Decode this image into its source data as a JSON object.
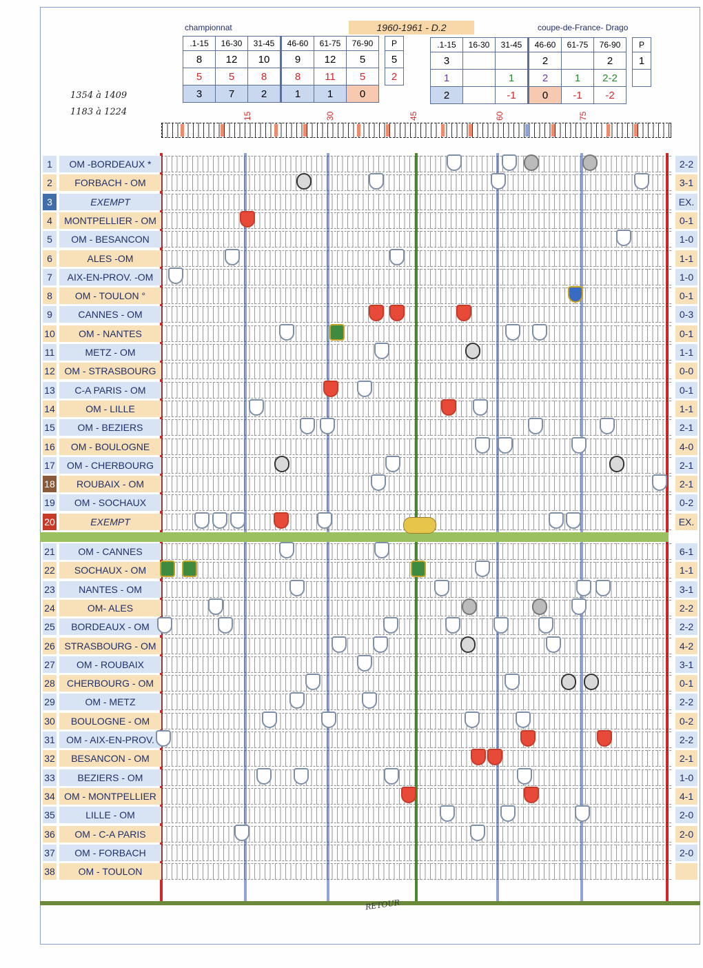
{
  "header": {
    "season": "1960-1961 - D.2",
    "league_label": "championnat",
    "cup_label": "coupe-de-France- Drago",
    "handwritten_1": "1354 à 1409",
    "handwritten_2": "1183 à 1224"
  },
  "league_table": {
    "headers": [
      ".1-15",
      "16-30",
      "31-45",
      "46-60",
      "61-75",
      "76-90",
      "P"
    ],
    "row1": [
      "8",
      "12",
      "10",
      "9",
      "12",
      "5",
      "5"
    ],
    "row2": [
      "5",
      "5",
      "8",
      "8",
      "11",
      "5",
      "2"
    ],
    "row3": [
      "3",
      "7",
      "2",
      "1",
      "1",
      "0",
      ""
    ]
  },
  "cup_table": {
    "headers": [
      ".1-15",
      "16-30",
      "31-45",
      "46-60",
      "61-75",
      "76-90",
      "P"
    ],
    "row1": [
      "3",
      "",
      "",
      "2",
      "",
      "2",
      "1"
    ],
    "row2": [
      "1",
      "",
      "1",
      "2",
      "1",
      "2-2",
      ""
    ],
    "row3": [
      "2",
      "",
      "-1",
      "0",
      "-1",
      "-2",
      ""
    ]
  },
  "minute_labels": [
    "15",
    "30",
    "45",
    "60",
    "75"
  ],
  "matches": [
    {
      "n": "1",
      "name": "OM -BORDEAUX *",
      "score": "2-2"
    },
    {
      "n": "2",
      "name": "FORBACH - OM",
      "score": "3-1"
    },
    {
      "n": "3",
      "name": "EXEMPT",
      "score": "EX."
    },
    {
      "n": "4",
      "name": "MONTPELLIER - OM",
      "score": "0-1"
    },
    {
      "n": "5",
      "name": "OM - BESANCON",
      "score": "1-0"
    },
    {
      "n": "6",
      "name": "ALES -OM",
      "score": "1-1"
    },
    {
      "n": "7",
      "name": "AIX-EN-PROV. -OM",
      "score": "1-0"
    },
    {
      "n": "8",
      "name": "OM - TOULON °",
      "score": "0-1"
    },
    {
      "n": "9",
      "name": "CANNES - OM",
      "score": "0-3"
    },
    {
      "n": "10",
      "name": "OM - NANTES",
      "score": "0-1"
    },
    {
      "n": "11",
      "name": "METZ - OM",
      "score": "1-1"
    },
    {
      "n": "12",
      "name": "OM - STRASBOURG",
      "score": "0-0"
    },
    {
      "n": "13",
      "name": "C-A PARIS - OM",
      "score": "0-1"
    },
    {
      "n": "14",
      "name": "OM - LILLE",
      "score": "1-1"
    },
    {
      "n": "15",
      "name": "OM - BEZIERS",
      "score": "2-1"
    },
    {
      "n": "16",
      "name": "OM - BOULOGNE",
      "score": "4-0"
    },
    {
      "n": "17",
      "name": "OM - CHERBOURG",
      "score": "2-1"
    },
    {
      "n": "18",
      "name": "ROUBAIX - OM",
      "score": "2-1"
    },
    {
      "n": "19",
      "name": "OM - SOCHAUX",
      "score": "0-2"
    },
    {
      "n": "20",
      "name": "EXEMPT",
      "score": "EX."
    },
    {
      "n": "21",
      "name": "OM - CANNES",
      "score": "6-1"
    },
    {
      "n": "22",
      "name": "SOCHAUX - OM",
      "score": "1-1"
    },
    {
      "n": "23",
      "name": "NANTES - OM",
      "score": "3-1"
    },
    {
      "n": "24",
      "name": "OM- ALES",
      "score": "2-2"
    },
    {
      "n": "25",
      "name": "BORDEAUX - OM",
      "score": "2-2"
    },
    {
      "n": "26",
      "name": "STRASBOURG - OM",
      "score": "4-2"
    },
    {
      "n": "27",
      "name": "OM - ROUBAIX",
      "score": "3-1"
    },
    {
      "n": "28",
      "name": "CHERBOURG - OM",
      "score": "0-1"
    },
    {
      "n": "29",
      "name": "OM - METZ",
      "score": "2-2"
    },
    {
      "n": "30",
      "name": "BOULOGNE - OM",
      "score": "0-2"
    },
    {
      "n": "31",
      "name": "OM - AIX-EN-PROV.",
      "score": "2-2"
    },
    {
      "n": "32",
      "name": "BESANCON - OM",
      "score": "2-1"
    },
    {
      "n": "33",
      "name": "BEZIERS - OM",
      "score": "1-0"
    },
    {
      "n": "34",
      "name": "OM - MONTPELLIER",
      "score": "4-1"
    },
    {
      "n": "35",
      "name": "LILLE - OM",
      "score": "2-0"
    },
    {
      "n": "36",
      "name": "OM - C-A PARIS",
      "score": "2-0"
    },
    {
      "n": "37",
      "name": "OM - FORBACH",
      "score": "2-0"
    },
    {
      "n": "38",
      "name": "OM - TOULON",
      "score": ""
    }
  ],
  "footer": {
    "retour": "RETOUR"
  },
  "colors": {
    "red_line": "#d32626",
    "green_line": "#4a8a2a",
    "blue_line": "#8ea4d8",
    "orange_row": "#f8e0b8",
    "blue_row": "#d8e4f4"
  }
}
